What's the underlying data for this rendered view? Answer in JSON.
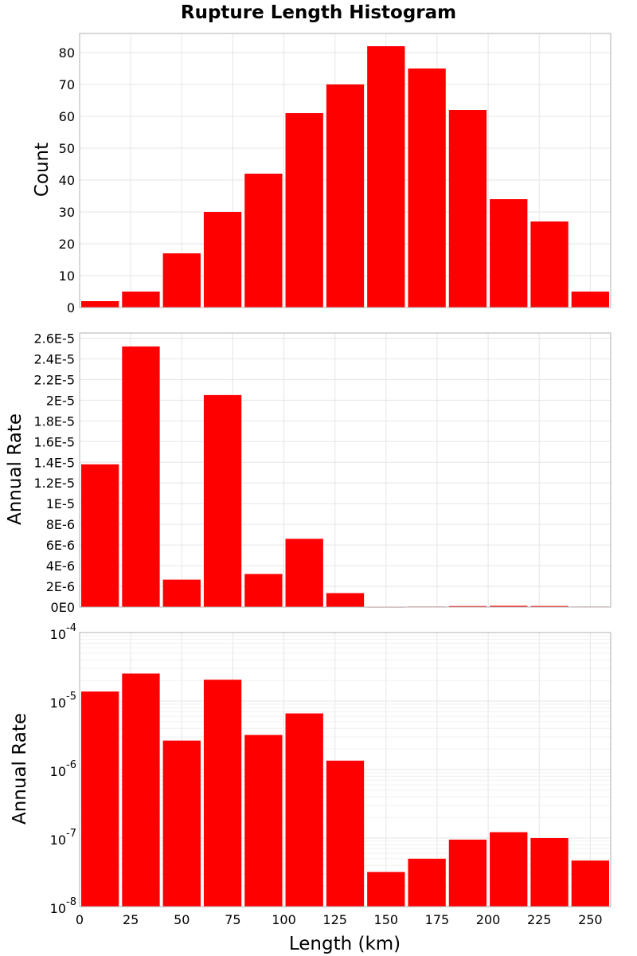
{
  "chart_data": [
    {
      "type": "bar",
      "panel": "count",
      "title": "Rupture Length Histogram",
      "ylabel": "Count",
      "xlabel": "",
      "bin_width": 20,
      "x_start": 0,
      "ylim": [
        0,
        86
      ],
      "yticks": [
        "0",
        "10",
        "20",
        "30",
        "40",
        "50",
        "60",
        "70",
        "80"
      ],
      "values": [
        2,
        5,
        17,
        30,
        42,
        61,
        70,
        82,
        75,
        62,
        34,
        27,
        5
      ],
      "scale": "linear",
      "grid": true,
      "color": "#ff0000"
    },
    {
      "type": "bar",
      "panel": "rate-linear",
      "ylabel": "Annual Rate",
      "xlabel": "",
      "bin_width": 20,
      "x_start": 0,
      "ylim": [
        0,
        2.65e-05
      ],
      "yticks": [
        "0E0",
        "2E-6",
        "4E-6",
        "6E-6",
        "8E-6",
        "1E-5",
        "1.2E-5",
        "1.4E-5",
        "1.6E-5",
        "1.8E-5",
        "2E-5",
        "2.2E-5",
        "2.4E-5",
        "2.6E-5"
      ],
      "values": [
        1.38e-05,
        2.52e-05,
        2.65e-06,
        2.05e-05,
        3.2e-06,
        6.6e-06,
        1.35e-06,
        3.2e-08,
        5e-08,
        9.5e-08,
        1.22e-07,
        1e-07,
        4.7e-08
      ],
      "scale": "linear",
      "grid": true,
      "color": "#ff0000"
    },
    {
      "type": "bar",
      "panel": "rate-log",
      "ylabel": "Annual Rate",
      "xlabel": "Length (km)",
      "bin_width": 20,
      "x_start": 0,
      "ylim": [
        1e-08,
        0.0001
      ],
      "yticks": [
        {
          "base": "10",
          "exp": "-8"
        },
        {
          "base": "10",
          "exp": "-7"
        },
        {
          "base": "10",
          "exp": "-6"
        },
        {
          "base": "10",
          "exp": "-5"
        },
        {
          "base": "10",
          "exp": "-4"
        }
      ],
      "xticks": [
        "0",
        "25",
        "50",
        "75",
        "100",
        "125",
        "150",
        "175",
        "200",
        "225",
        "250"
      ],
      "xlim": [
        0,
        260
      ],
      "values": [
        1.38e-05,
        2.52e-05,
        2.65e-06,
        2.05e-05,
        3.2e-06,
        6.6e-06,
        1.35e-06,
        3.2e-08,
        5e-08,
        9.5e-08,
        1.22e-07,
        1e-07,
        4.7e-08
      ],
      "scale": "log",
      "grid": true,
      "color": "#ff0000"
    }
  ]
}
